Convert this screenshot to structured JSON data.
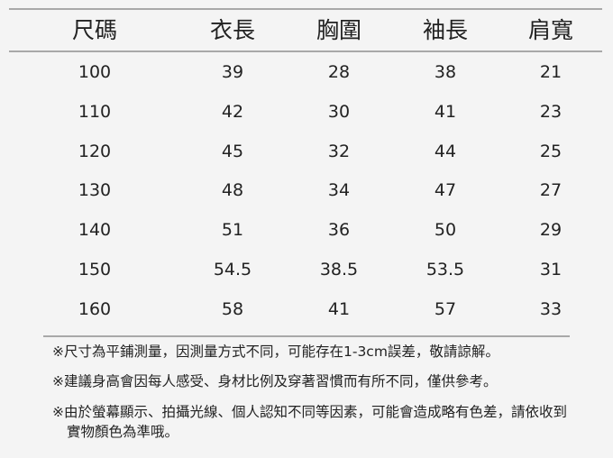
{
  "table": {
    "headers": [
      "尺碼",
      "衣長",
      "胸圍",
      "袖長",
      "肩寬"
    ],
    "rows": [
      [
        "100",
        "39",
        "28",
        "38",
        "21"
      ],
      [
        "110",
        "42",
        "30",
        "41",
        "23"
      ],
      [
        "120",
        "45",
        "32",
        "44",
        "25"
      ],
      [
        "130",
        "48",
        "34",
        "47",
        "27"
      ],
      [
        "140",
        "51",
        "36",
        "50",
        "29"
      ],
      [
        "150",
        "54.5",
        "38.5",
        "53.5",
        "31"
      ],
      [
        "160",
        "58",
        "41",
        "57",
        "33"
      ]
    ]
  },
  "notes": [
    "※尺寸為平鋪測量，因測量方式不同，可能存在1-3cm誤差，敬請諒解。",
    "※建議身高會因每人感受、身材比例及穿著習慣而有所不同，僅供參考。",
    "※由於螢幕顯示、拍攝光線、個人認知不同等因素，可能會造成略有色差，請依收到實物顏色為準哦。"
  ]
}
